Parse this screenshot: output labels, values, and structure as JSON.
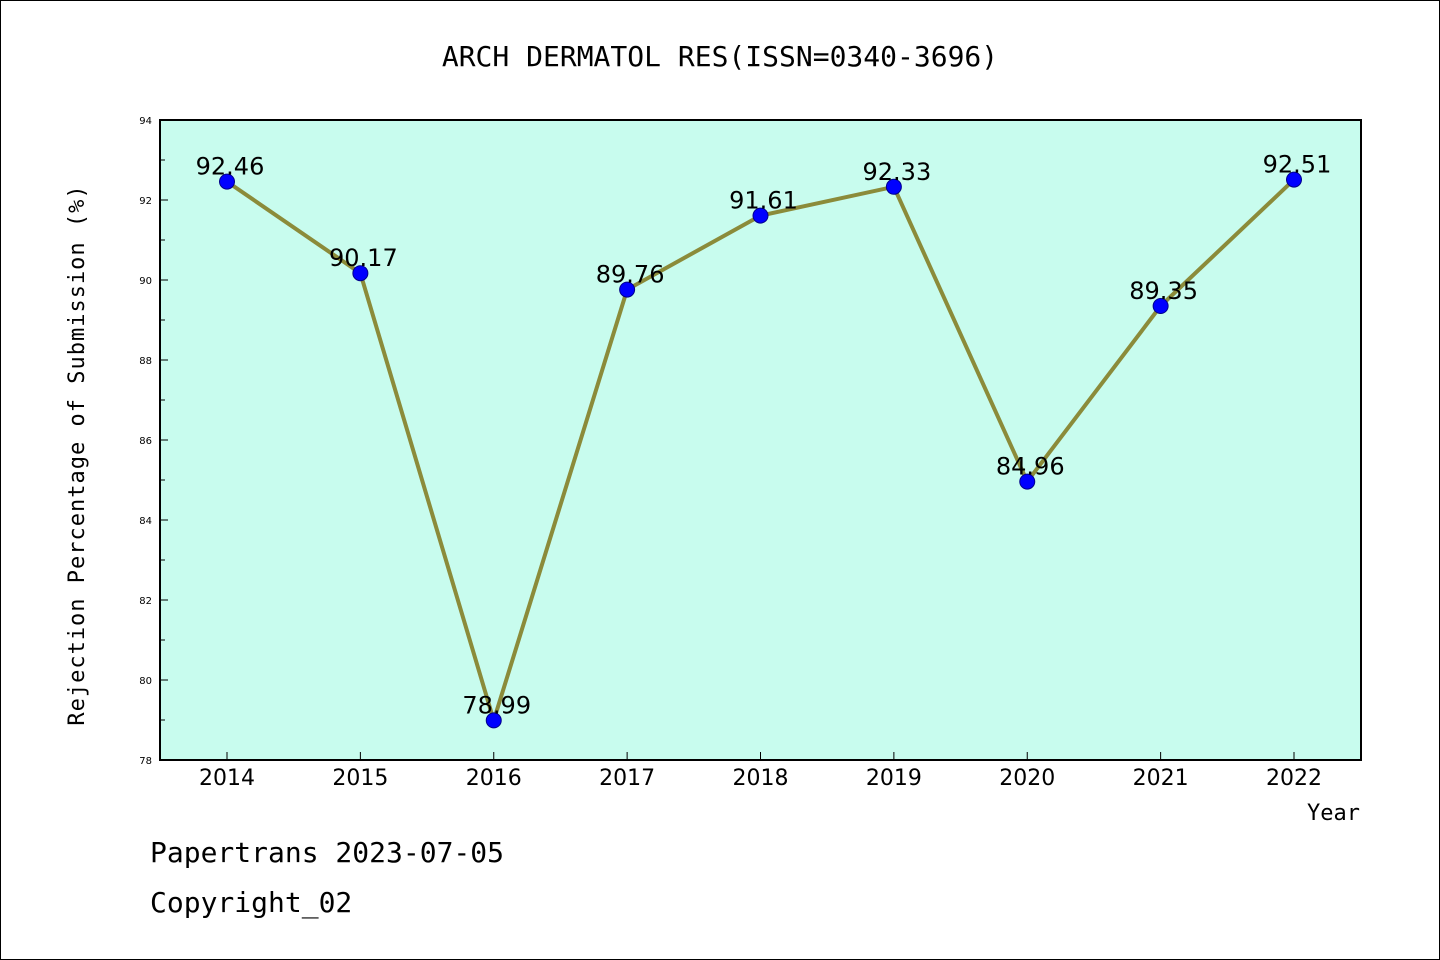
{
  "chart_data": {
    "type": "line",
    "title": "ARCH DERMATOL RES(ISSN=0340-3696)",
    "xlabel": "Year",
    "ylabel": "Rejection Percentage of Submission (%)",
    "categories": [
      "2014",
      "2015",
      "2016",
      "2017",
      "2018",
      "2019",
      "2020",
      "2021",
      "2022"
    ],
    "values": [
      92.46,
      90.17,
      78.99,
      89.76,
      91.61,
      92.33,
      84.96,
      89.35,
      92.51
    ],
    "data_labels": [
      "92.46",
      "90.17",
      "78.99",
      "89.76",
      "91.61",
      "92.33",
      "84.96",
      "89.35",
      "92.51"
    ],
    "ylim": [
      78,
      94
    ],
    "yticks": [
      78,
      80,
      82,
      84,
      86,
      88,
      90,
      92,
      94
    ],
    "grid": false,
    "colors": {
      "plot_background": "#c8fcee",
      "line": "#8b8b3a",
      "marker": "#0000ff"
    }
  },
  "footer": {
    "line1": "Papertrans 2023-07-05",
    "line2": "Copyright_02"
  }
}
